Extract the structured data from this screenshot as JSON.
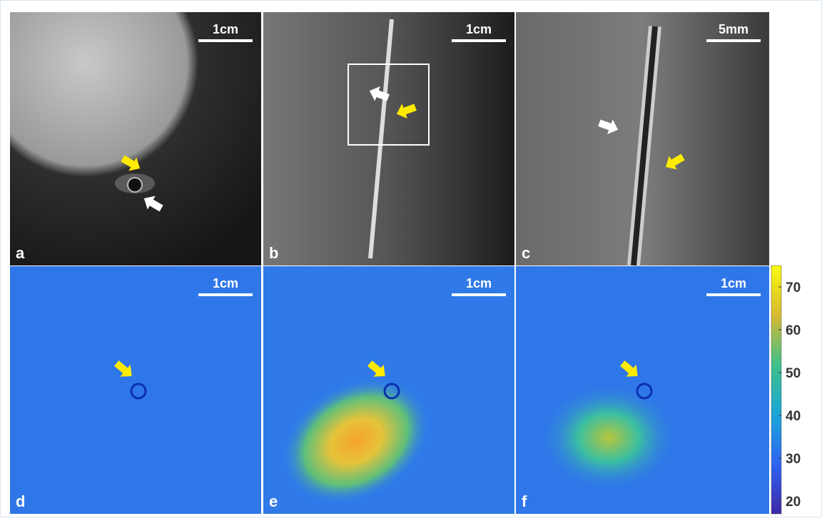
{
  "panels": [
    {
      "label": "a",
      "scale_bar": "1cm"
    },
    {
      "label": "b",
      "scale_bar": "1cm"
    },
    {
      "label": "c",
      "scale_bar": "5mm"
    },
    {
      "label": "d",
      "scale_bar": "1cm"
    },
    {
      "label": "e",
      "scale_bar": "1cm"
    },
    {
      "label": "f",
      "scale_bar": "1cm"
    }
  ],
  "colorbar": {
    "lim": [
      17,
      75
    ],
    "ticks": [
      20,
      30,
      40,
      50,
      60,
      70
    ]
  }
}
